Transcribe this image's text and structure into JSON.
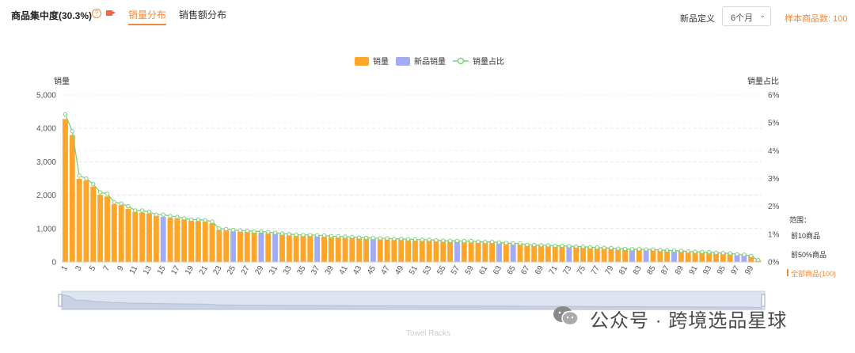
{
  "header": {
    "title": "商品集中度(30.3%)",
    "help_icon": "help-circle-icon",
    "video_icon": "video-icon",
    "tabs": [
      {
        "label": "销量分布",
        "active": true
      },
      {
        "label": "销售额分布",
        "active": false
      }
    ],
    "new_product_label": "新品定义",
    "period_select": {
      "value": "6个月",
      "icon": "chevron-down-icon"
    },
    "sample_count": "样本商品数: 100"
  },
  "colors": {
    "accent": "#f08a3c",
    "bar": "#ffa528",
    "new_bar": "#a3abf5",
    "line": "#7ed07a"
  },
  "side_legend": {
    "label": "范围：",
    "items": [
      "前10商品",
      "前50%商品",
      "全部商品(100)"
    ],
    "active_index": 2
  },
  "watermark": {
    "text": "公众号 · 跨境选品星球",
    "icon": "wechat-icon"
  },
  "chart_data": {
    "type": "bar",
    "legend": [
      "销量",
      "新品销量",
      "销量占比"
    ],
    "ylabel_left": "销量",
    "ylabel_right": "销量占比",
    "yticks_left": [
      "0",
      "1,000",
      "2,000",
      "3,000",
      "4,000",
      "5,000"
    ],
    "yticks_right": [
      "0%",
      "1%",
      "2%",
      "3%",
      "4%",
      "5%",
      "6%"
    ],
    "ylim_left": [
      0,
      5000
    ],
    "ylim_right": [
      0,
      6
    ],
    "grid": true,
    "legend_position": "top-center",
    "categories": [
      1,
      2,
      3,
      4,
      5,
      6,
      7,
      8,
      9,
      10,
      11,
      12,
      13,
      14,
      15,
      16,
      17,
      18,
      19,
      20,
      21,
      22,
      23,
      24,
      25,
      26,
      27,
      28,
      29,
      30,
      31,
      32,
      33,
      34,
      35,
      36,
      37,
      38,
      39,
      40,
      41,
      42,
      43,
      44,
      45,
      46,
      47,
      48,
      49,
      50,
      51,
      52,
      53,
      54,
      55,
      56,
      57,
      58,
      59,
      60,
      61,
      62,
      63,
      64,
      65,
      66,
      67,
      68,
      69,
      70,
      71,
      72,
      73,
      74,
      75,
      76,
      77,
      78,
      79,
      80,
      81,
      82,
      83,
      84,
      85,
      86,
      87,
      88,
      89,
      90,
      91,
      92,
      93,
      94,
      95,
      96,
      97,
      98,
      99,
      100
    ],
    "xtick_labels": [
      "1",
      "3",
      "5",
      "7",
      "9",
      "11",
      "13",
      "15",
      "17",
      "19",
      "21",
      "23",
      "25",
      "27",
      "29",
      "31",
      "33",
      "35",
      "37",
      "39",
      "41",
      "43",
      "45",
      "47",
      "49",
      "51",
      "53",
      "55",
      "57",
      "59",
      "61",
      "63",
      "65",
      "67",
      "69",
      "71",
      "73",
      "75",
      "77",
      "79",
      "81",
      "83",
      "85",
      "87",
      "89",
      "91",
      "93",
      "95",
      "97",
      "99"
    ],
    "series": [
      {
        "name": "销量",
        "values": [
          4280,
          3800,
          2490,
          2440,
          2260,
          2010,
          1960,
          1730,
          1700,
          1590,
          1500,
          1480,
          1450,
          1380,
          1350,
          1320,
          1300,
          1270,
          1230,
          1220,
          1210,
          1160,
          960,
          950,
          920,
          910,
          900,
          880,
          880,
          860,
          850,
          820,
          800,
          790,
          780,
          780,
          770,
          760,
          750,
          740,
          730,
          720,
          710,
          700,
          690,
          680,
          680,
          670,
          670,
          660,
          650,
          640,
          640,
          630,
          620,
          610,
          610,
          600,
          600,
          590,
          580,
          580,
          560,
          550,
          540,
          530,
          500,
          490,
          480,
          480,
          470,
          470,
          460,
          450,
          440,
          430,
          420,
          410,
          400,
          390,
          380,
          370,
          370,
          360,
          360,
          350,
          340,
          330,
          320,
          310,
          300,
          290,
          280,
          270,
          260,
          250,
          230,
          210,
          180,
          60
        ]
      },
      {
        "name": "新品销量",
        "values": [
          0,
          0,
          0,
          0,
          0,
          0,
          0,
          0,
          0,
          0,
          0,
          0,
          0,
          0,
          1350,
          0,
          0,
          0,
          0,
          0,
          0,
          0,
          0,
          0,
          920,
          0,
          0,
          0,
          880,
          0,
          850,
          0,
          0,
          0,
          0,
          0,
          770,
          0,
          0,
          0,
          0,
          0,
          0,
          0,
          690,
          0,
          0,
          0,
          0,
          0,
          0,
          0,
          0,
          0,
          0,
          0,
          610,
          0,
          0,
          0,
          0,
          0,
          560,
          0,
          540,
          0,
          0,
          0,
          0,
          0,
          0,
          0,
          460,
          0,
          0,
          0,
          0,
          0,
          0,
          0,
          0,
          370,
          0,
          360,
          0,
          0,
          0,
          330,
          0,
          0,
          0,
          0,
          0,
          0,
          0,
          0,
          230,
          210,
          0,
          0
        ]
      },
      {
        "name": "销量占比",
        "values": [
          5.3,
          4.7,
          3.1,
          3.0,
          2.8,
          2.5,
          2.45,
          2.15,
          2.1,
          2.0,
          1.85,
          1.85,
          1.8,
          1.7,
          1.7,
          1.65,
          1.62,
          1.57,
          1.52,
          1.52,
          1.5,
          1.45,
          1.2,
          1.18,
          1.15,
          1.13,
          1.12,
          1.1,
          1.1,
          1.07,
          1.05,
          1.02,
          1.0,
          0.98,
          0.97,
          0.97,
          0.96,
          0.95,
          0.93,
          0.92,
          0.91,
          0.9,
          0.88,
          0.87,
          0.86,
          0.85,
          0.85,
          0.83,
          0.83,
          0.82,
          0.81,
          0.8,
          0.8,
          0.78,
          0.77,
          0.76,
          0.76,
          0.75,
          0.75,
          0.73,
          0.72,
          0.72,
          0.7,
          0.68,
          0.67,
          0.66,
          0.62,
          0.61,
          0.6,
          0.6,
          0.58,
          0.58,
          0.57,
          0.56,
          0.55,
          0.53,
          0.52,
          0.51,
          0.5,
          0.48,
          0.47,
          0.46,
          0.46,
          0.45,
          0.45,
          0.43,
          0.42,
          0.41,
          0.4,
          0.38,
          0.37,
          0.36,
          0.35,
          0.33,
          0.32,
          0.31,
          0.28,
          0.26,
          0.22,
          0.07
        ]
      }
    ],
    "xaxis_title": "Towel Racks"
  }
}
